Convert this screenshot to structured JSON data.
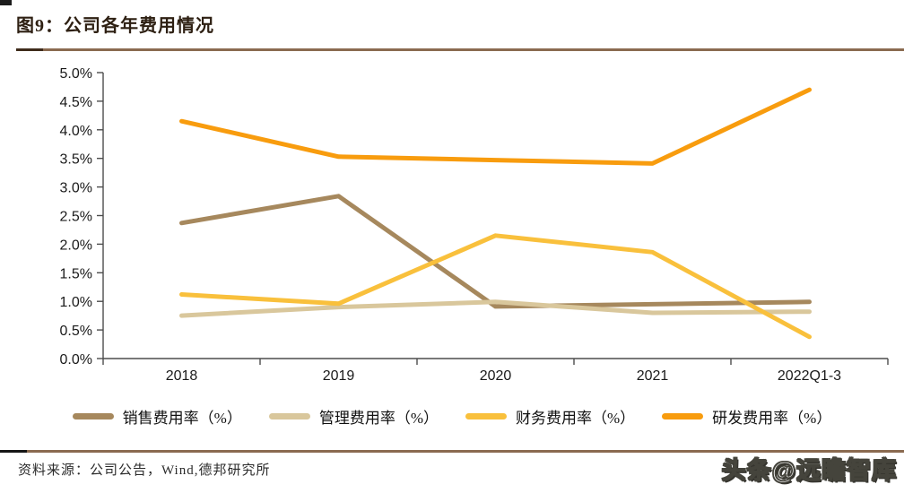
{
  "page": {
    "title": "图9：公司各年费用情况",
    "source_note": "资料来源：公司公告，Wind,德邦研究所",
    "watermark": "头条@远瞻智库"
  },
  "chart_data": {
    "type": "line",
    "title": "公司各年费用情况",
    "categories": [
      "2018",
      "2019",
      "2020",
      "2021",
      "2022Q1-3"
    ],
    "series": [
      {
        "name": "销售费用率（%）",
        "color": "#A6885D",
        "values": [
          2.37,
          2.84,
          0.91,
          0.95,
          0.99
        ]
      },
      {
        "name": "管理费用率（%）",
        "color": "#D9C79C",
        "values": [
          0.75,
          0.9,
          0.99,
          0.8,
          0.82
        ]
      },
      {
        "name": "财务费用率（%）",
        "color": "#F9C03C",
        "values": [
          1.12,
          0.96,
          2.15,
          1.86,
          0.38
        ]
      },
      {
        "name": "研发费用率（%）",
        "color": "#F89C0E",
        "values": [
          4.15,
          3.53,
          3.47,
          3.41,
          4.7
        ]
      }
    ],
    "xlabel": "",
    "ylabel": "",
    "ylim": [
      0,
      5
    ],
    "ytick_step": 0.5,
    "ytick_labels": [
      "0.0%",
      "0.5%",
      "1.0%",
      "1.5%",
      "2.0%",
      "2.5%",
      "3.0%",
      "3.5%",
      "4.0%",
      "4.5%",
      "5.0%"
    ],
    "grid": false,
    "legend_position": "bottom",
    "axis_color": "#4d4d4d",
    "tick_label_color": "#1a1a1a",
    "line_width": 5
  }
}
